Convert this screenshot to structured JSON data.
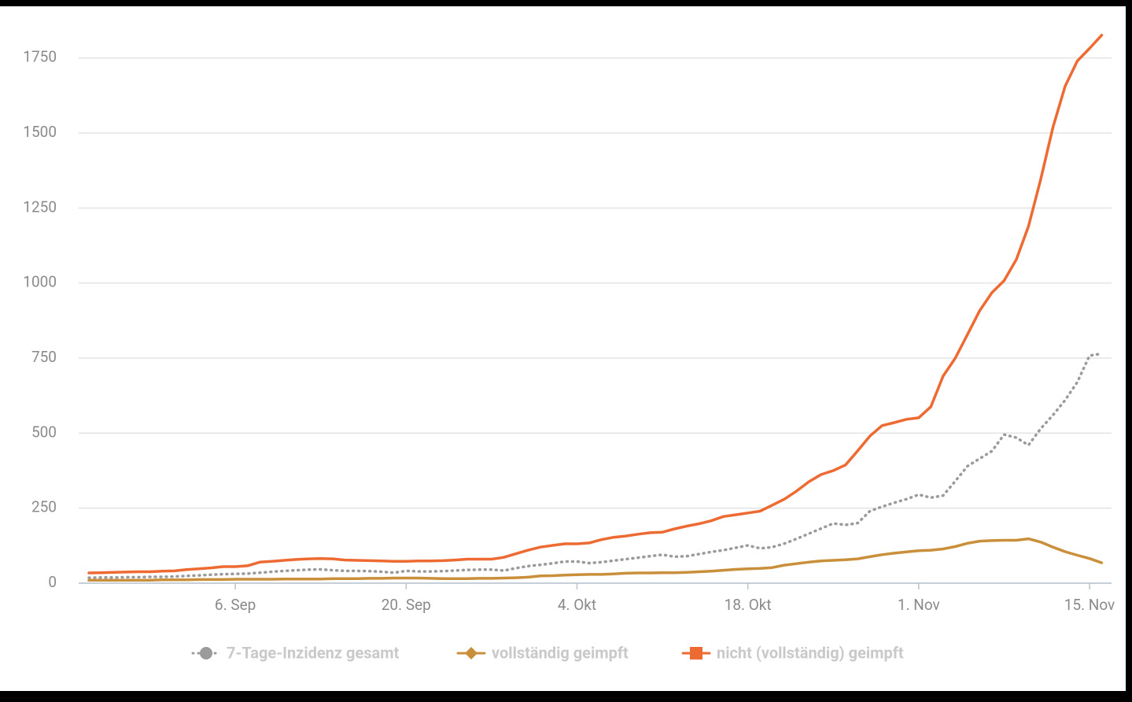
{
  "chart_data": {
    "type": "line",
    "categories": [
      null,
      null,
      null,
      null,
      null,
      null,
      null,
      null,
      null,
      null,
      null,
      null,
      "6. Sep",
      null,
      null,
      null,
      null,
      null,
      null,
      null,
      null,
      null,
      null,
      null,
      null,
      null,
      "20. Sep",
      null,
      null,
      null,
      null,
      null,
      null,
      null,
      null,
      null,
      null,
      null,
      null,
      null,
      "4. Okt",
      null,
      null,
      null,
      null,
      null,
      null,
      null,
      null,
      null,
      null,
      null,
      null,
      null,
      "18. Okt",
      null,
      null,
      null,
      null,
      null,
      null,
      null,
      null,
      null,
      null,
      null,
      null,
      null,
      "1. Nov",
      null,
      null,
      null,
      null,
      null,
      null,
      null,
      null,
      null,
      null,
      null,
      null,
      null,
      "15. Nov",
      null
    ],
    "ylim": [
      0,
      1875
    ],
    "yticks": [
      0,
      250,
      500,
      750,
      1000,
      1250,
      1500,
      1750
    ],
    "grid": true,
    "legend": "bottom",
    "series": [
      {
        "name": "7-Tage-Inzidenz gesamt",
        "color": "#9b9b9b",
        "marker": "circle",
        "dashed": true,
        "values": [
          18,
          19,
          19,
          20,
          20,
          21,
          21,
          22,
          24,
          26,
          28,
          30,
          31,
          32,
          35,
          38,
          41,
          43,
          45,
          46,
          43,
          41,
          41,
          40,
          38,
          35,
          41,
          39,
          39,
          40,
          42,
          44,
          45,
          45,
          42,
          50,
          57,
          61,
          66,
          72,
          72,
          67,
          70,
          75,
          80,
          85,
          90,
          95,
          88,
          90,
          97,
          104,
          110,
          118,
          126,
          116,
          120,
          132,
          148,
          165,
          182,
          199,
          194,
          200,
          240,
          255,
          268,
          280,
          295,
          285,
          292,
          340,
          390,
          415,
          440,
          495,
          485,
          460,
          515,
          560,
          610,
          670,
          758,
          765
        ]
      },
      {
        "name": "vollständig geimpft",
        "color": "#c98f3a",
        "marker": "diamond",
        "dashed": false,
        "values": [
          10,
          10,
          10,
          10,
          10,
          10,
          11,
          11,
          11,
          12,
          12,
          12,
          13,
          13,
          13,
          13,
          14,
          14,
          14,
          14,
          15,
          15,
          15,
          16,
          16,
          17,
          17,
          17,
          16,
          15,
          15,
          15,
          16,
          16,
          17,
          18,
          20,
          24,
          25,
          27,
          28,
          29,
          29,
          31,
          33,
          34,
          34,
          35,
          35,
          36,
          38,
          40,
          43,
          46,
          48,
          49,
          52,
          60,
          65,
          70,
          74,
          76,
          78,
          81,
          88,
          95,
          100,
          104,
          108,
          110,
          114,
          122,
          133,
          140,
          142,
          143,
          143,
          148,
          137,
          120,
          105,
          93,
          82,
          68
        ]
      },
      {
        "name": "nicht (vollständig) geimpft",
        "color": "#ee6a33",
        "marker": "square",
        "dashed": false,
        "values": [
          34,
          35,
          36,
          37,
          38,
          38,
          40,
          41,
          45,
          48,
          51,
          55,
          55,
          58,
          70,
          73,
          76,
          79,
          81,
          82,
          81,
          77,
          76,
          75,
          74,
          73,
          73,
          74,
          74,
          75,
          77,
          80,
          80,
          80,
          86,
          98,
          110,
          120,
          126,
          131,
          131,
          134,
          145,
          153,
          157,
          163,
          168,
          170,
          181,
          190,
          198,
          208,
          222,
          228,
          234,
          240,
          260,
          280,
          307,
          338,
          362,
          375,
          394,
          441,
          490,
          525,
          535,
          546,
          551,
          588,
          690,
          750,
          829,
          908,
          968,
          1008,
          1078,
          1189,
          1346,
          1519,
          1656,
          1740,
          1782,
          1826
        ]
      }
    ]
  }
}
